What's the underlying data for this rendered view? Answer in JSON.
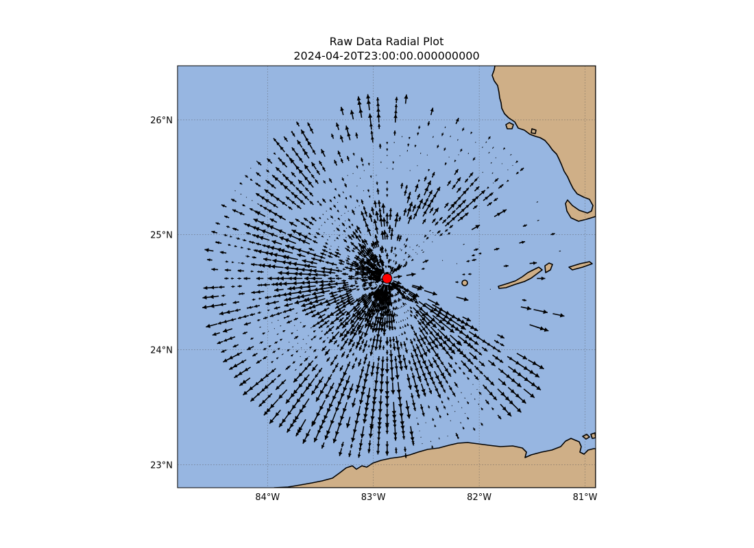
{
  "figure": {
    "title": "Raw Data Radial Plot",
    "subtitle": "2024-04-20T23:00:00.000000000"
  },
  "map": {
    "extent": {
      "lon": [
        -84.85,
        -80.9
      ],
      "lat": [
        22.8,
        26.47
      ]
    },
    "lon_ticks": [
      {
        "value": -84,
        "label": "84°W"
      },
      {
        "value": -83,
        "label": "83°W"
      },
      {
        "value": -82,
        "label": "82°W"
      },
      {
        "value": -81,
        "label": "81°W"
      }
    ],
    "lat_ticks": [
      {
        "value": 23,
        "label": "23°N"
      },
      {
        "value": 24,
        "label": "24°N"
      },
      {
        "value": 25,
        "label": "25°N"
      },
      {
        "value": 26,
        "label": "26°N"
      }
    ],
    "gridlines": true,
    "ocean_color": "#97b6e1",
    "land_color": "#cfaf87",
    "coastline_color": "#000000",
    "vector_color": "#000000",
    "radar_site": {
      "lon": -82.87,
      "lat": 24.62,
      "color": "#ff0000"
    }
  }
}
